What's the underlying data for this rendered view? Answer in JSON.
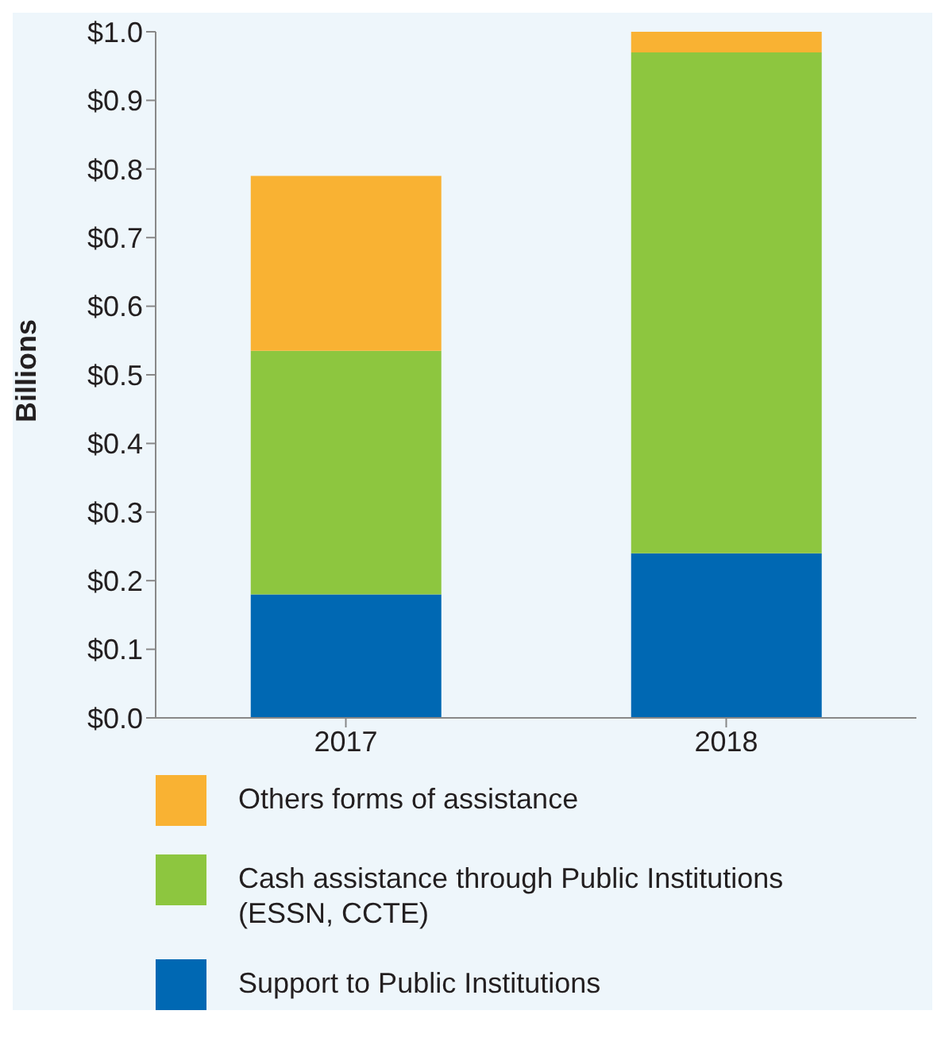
{
  "chart_data": {
    "type": "bar",
    "ylabel": "Billions",
    "categories": [
      "2017",
      "2018"
    ],
    "stacked": true,
    "series": [
      {
        "name": "Support to Public Institutions",
        "color": "#0068b3",
        "values": [
          0.18,
          0.24
        ]
      },
      {
        "name": "Cash assistance through Public Institutions (ESSN, CCTE)",
        "color": "#8dc63f",
        "values": [
          0.355,
          0.73
        ]
      },
      {
        "name": "Others forms of assistance",
        "color": "#f9b233",
        "values": [
          0.255,
          0.03
        ]
      }
    ],
    "ylim": [
      0,
      1
    ],
    "yticks": [
      {
        "value": 0,
        "label": "$0.0"
      },
      {
        "value": 0.1,
        "label": "$0.1"
      },
      {
        "value": 0.2,
        "label": "$0.2"
      },
      {
        "value": 0.3,
        "label": "$0.3"
      },
      {
        "value": 0.4,
        "label": "$0.4"
      },
      {
        "value": 0.5,
        "label": "$0.5"
      },
      {
        "value": 0.6,
        "label": "$0.6"
      },
      {
        "value": 0.7,
        "label": "$0.7"
      },
      {
        "value": 0.8,
        "label": "$0.8"
      },
      {
        "value": 0.9,
        "label": "$0.9"
      },
      {
        "value": 1,
        "label": "$1.0"
      }
    ],
    "grid": false,
    "legend": "bottom"
  }
}
